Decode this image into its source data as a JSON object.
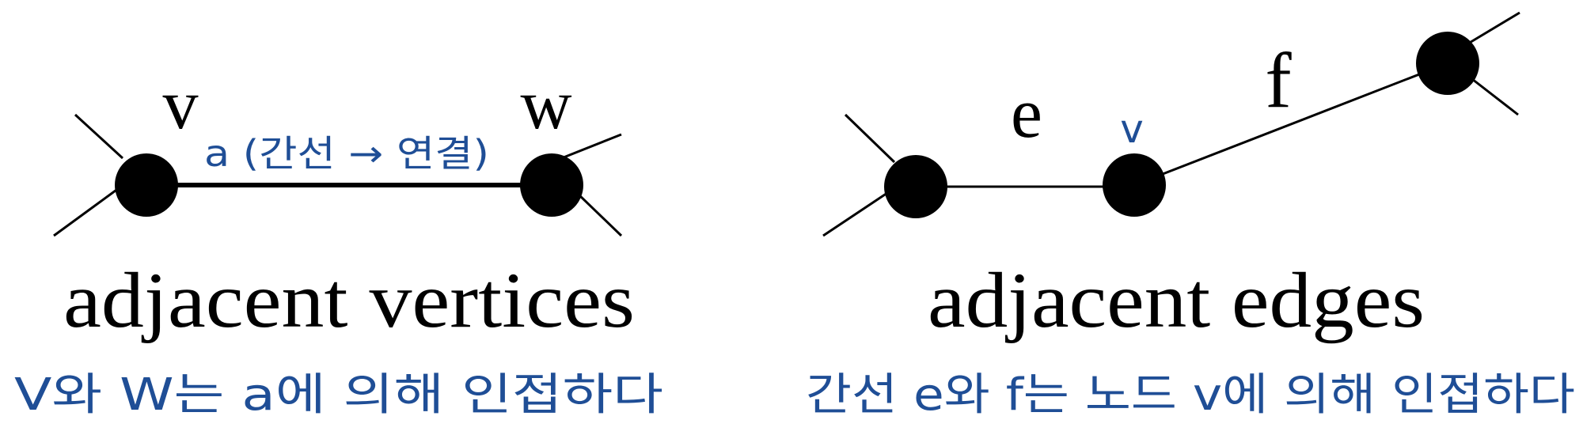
{
  "colors": {
    "ink": "#000000",
    "annotation": "#1f4e96",
    "background": "#ffffff"
  },
  "left_diagram": {
    "vertex_v_label": "v",
    "vertex_w_label": "w",
    "edge_annotation": "a (간선 → 연결)",
    "caption": "adjacent vertices",
    "note": "V와 W는 a에 의해 인접하다"
  },
  "right_diagram": {
    "edge_e_label": "e",
    "edge_f_label": "f",
    "vertex_v_label": "v",
    "caption": "adjacent edges",
    "note": "간선 e와 f는 노드 v에 의해 인접하다"
  }
}
